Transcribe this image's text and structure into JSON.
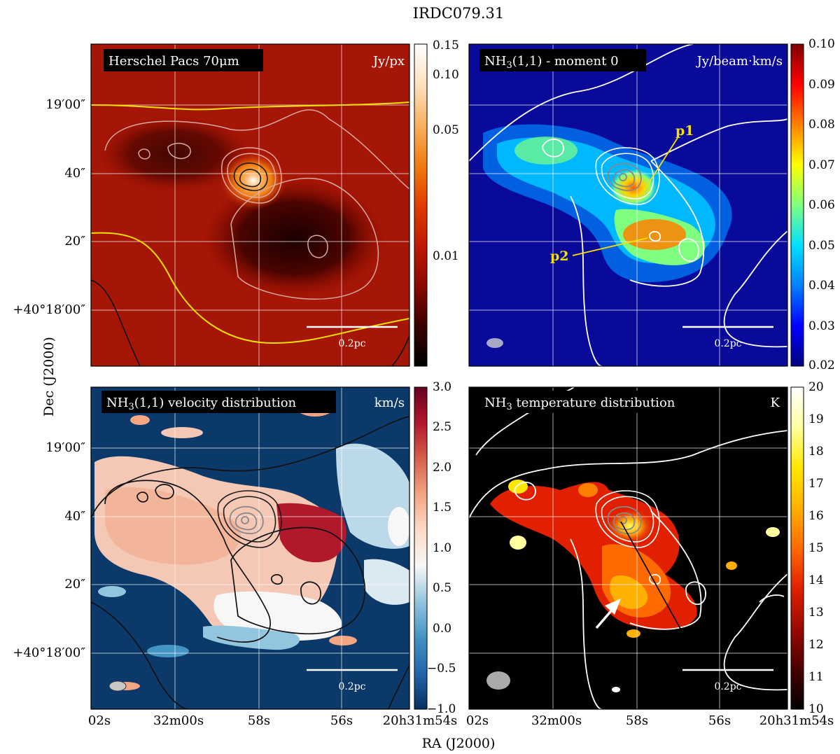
{
  "figure": {
    "title": "IRDC079.31",
    "xlabel": "RA (J2000)",
    "ylabel": "Dec (J2000)",
    "ra_ticks": [
      "02s",
      "32m00s",
      "58s",
      "56s",
      "20h31m54s"
    ],
    "dec_ticks": [
      "19′00″",
      "40″",
      "20″",
      "+40°18′00″"
    ]
  },
  "panels": [
    {
      "id": "pacs70",
      "label": "Herschel Pacs 70μm",
      "unit": "Jy/px",
      "scalebar": "0.2pc",
      "colormap": [
        "#000000",
        "#3a0000",
        "#8a0a00",
        "#c01a00",
        "#e23c00",
        "#f07d10",
        "#f9b060",
        "#fde2c0",
        "#ffffff"
      ],
      "colorbar_ticks": [
        "0.15",
        "0.10",
        "0.05",
        "0.01"
      ],
      "colors": {
        "background": "#a51606",
        "yellow_contour": "#f5e000"
      }
    },
    {
      "id": "moment0",
      "label": "NH3(1,1) - moment 0",
      "unit": "Jy/beam·km/s",
      "scalebar": "0.2pc",
      "colormap": [
        "#00007f",
        "#0000ff",
        "#0080ff",
        "#00e0ff",
        "#7fff7f",
        "#ffff00",
        "#ff8000",
        "#ff0000",
        "#7f0000"
      ],
      "colorbar_ticks": [
        "0.10",
        "0.09",
        "0.08",
        "0.07",
        "0.06",
        "0.05",
        "0.04",
        "0.03",
        "0.02"
      ],
      "annotations": [
        "p1",
        "p2"
      ],
      "colors": {
        "background": "#0a0a9a",
        "annotation": "#f5e000"
      }
    },
    {
      "id": "velocity",
      "label": "NH3(1,1) velocity distribution",
      "unit": "km/s",
      "scalebar": "0.2pc",
      "colormap": [
        "#053061",
        "#2166ac",
        "#4393c3",
        "#92c5de",
        "#f7f7f7",
        "#fddbc7",
        "#f4a582",
        "#d6604d",
        "#b2182b",
        "#67001f"
      ],
      "colorbar_ticks": [
        "3.0",
        "2.5",
        "2.0",
        "1.5",
        "1.0",
        "0.5",
        "0.0",
        "−0.5",
        "−1.0"
      ],
      "colors": {
        "background": "#0b3a6a"
      }
    },
    {
      "id": "temperature",
      "label": "NH3 temperature distribution",
      "unit": "K",
      "scalebar": "0.2pc",
      "colormap": [
        "#000000",
        "#4a0000",
        "#9a0a00",
        "#e02000",
        "#ff6a00",
        "#ffb000",
        "#ffe800",
        "#ffffa0",
        "#ffffff"
      ],
      "colorbar_ticks": [
        "20",
        "19",
        "18",
        "17",
        "16",
        "15",
        "14",
        "13",
        "12",
        "11",
        "10"
      ],
      "colors": {
        "background": "#000000"
      }
    }
  ]
}
